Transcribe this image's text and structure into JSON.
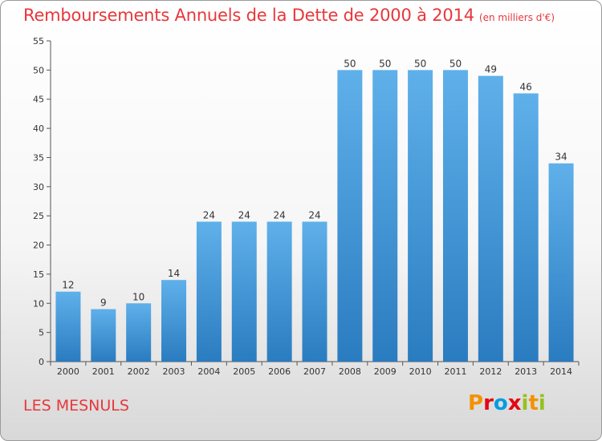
{
  "header": {
    "title": "Remboursements Annuels de la Dette de 2000 à 2014",
    "unit": "(en milliers d'€)"
  },
  "footer": {
    "commune": "LES MESNULS",
    "brand_letters": [
      "P",
      "r",
      "o",
      "x",
      "i",
      "t",
      "i"
    ]
  },
  "colors": {
    "title": "#e8373b",
    "bar_top": "#5fb0ea",
    "bar_bottom": "#2a7cc0",
    "brand": [
      "#f39200",
      "#e30613",
      "#009de0",
      "#e30613",
      "#95c11f",
      "#f39200",
      "#95c11f"
    ]
  },
  "chart_data": {
    "type": "bar",
    "categories": [
      "2000",
      "2001",
      "2002",
      "2003",
      "2004",
      "2005",
      "2006",
      "2007",
      "2008",
      "2009",
      "2010",
      "2011",
      "2012",
      "2013",
      "2014"
    ],
    "values": [
      12,
      9,
      10,
      14,
      24,
      24,
      24,
      24,
      50,
      50,
      50,
      50,
      49,
      46,
      34
    ],
    "ylim": [
      0,
      55
    ],
    "yticks": [
      0,
      5,
      10,
      15,
      20,
      25,
      30,
      35,
      40,
      45,
      50,
      55
    ],
    "grid": false,
    "legend": "none"
  }
}
